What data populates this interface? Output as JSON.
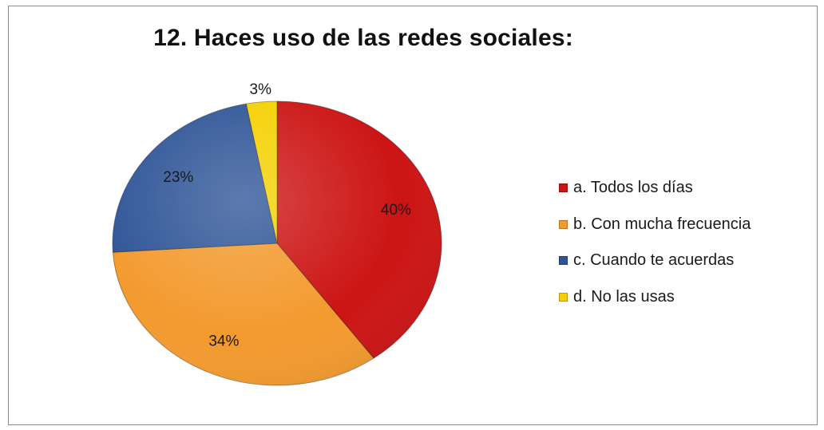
{
  "chart_data": {
    "type": "pie",
    "title": "12. Haces uso de las redes sociales:",
    "categories": [
      "a. Todos los días",
      "b. Con mucha frecuencia",
      "c. Cuando te acuerdas",
      "d. No las usas"
    ],
    "values": [
      40,
      34,
      23,
      3
    ],
    "value_labels": [
      "40%",
      "34%",
      "23%",
      "3%"
    ],
    "colors": [
      "#cc1414",
      "#f39a2e",
      "#2f5597",
      "#f5d000"
    ],
    "legend_position": "right"
  }
}
